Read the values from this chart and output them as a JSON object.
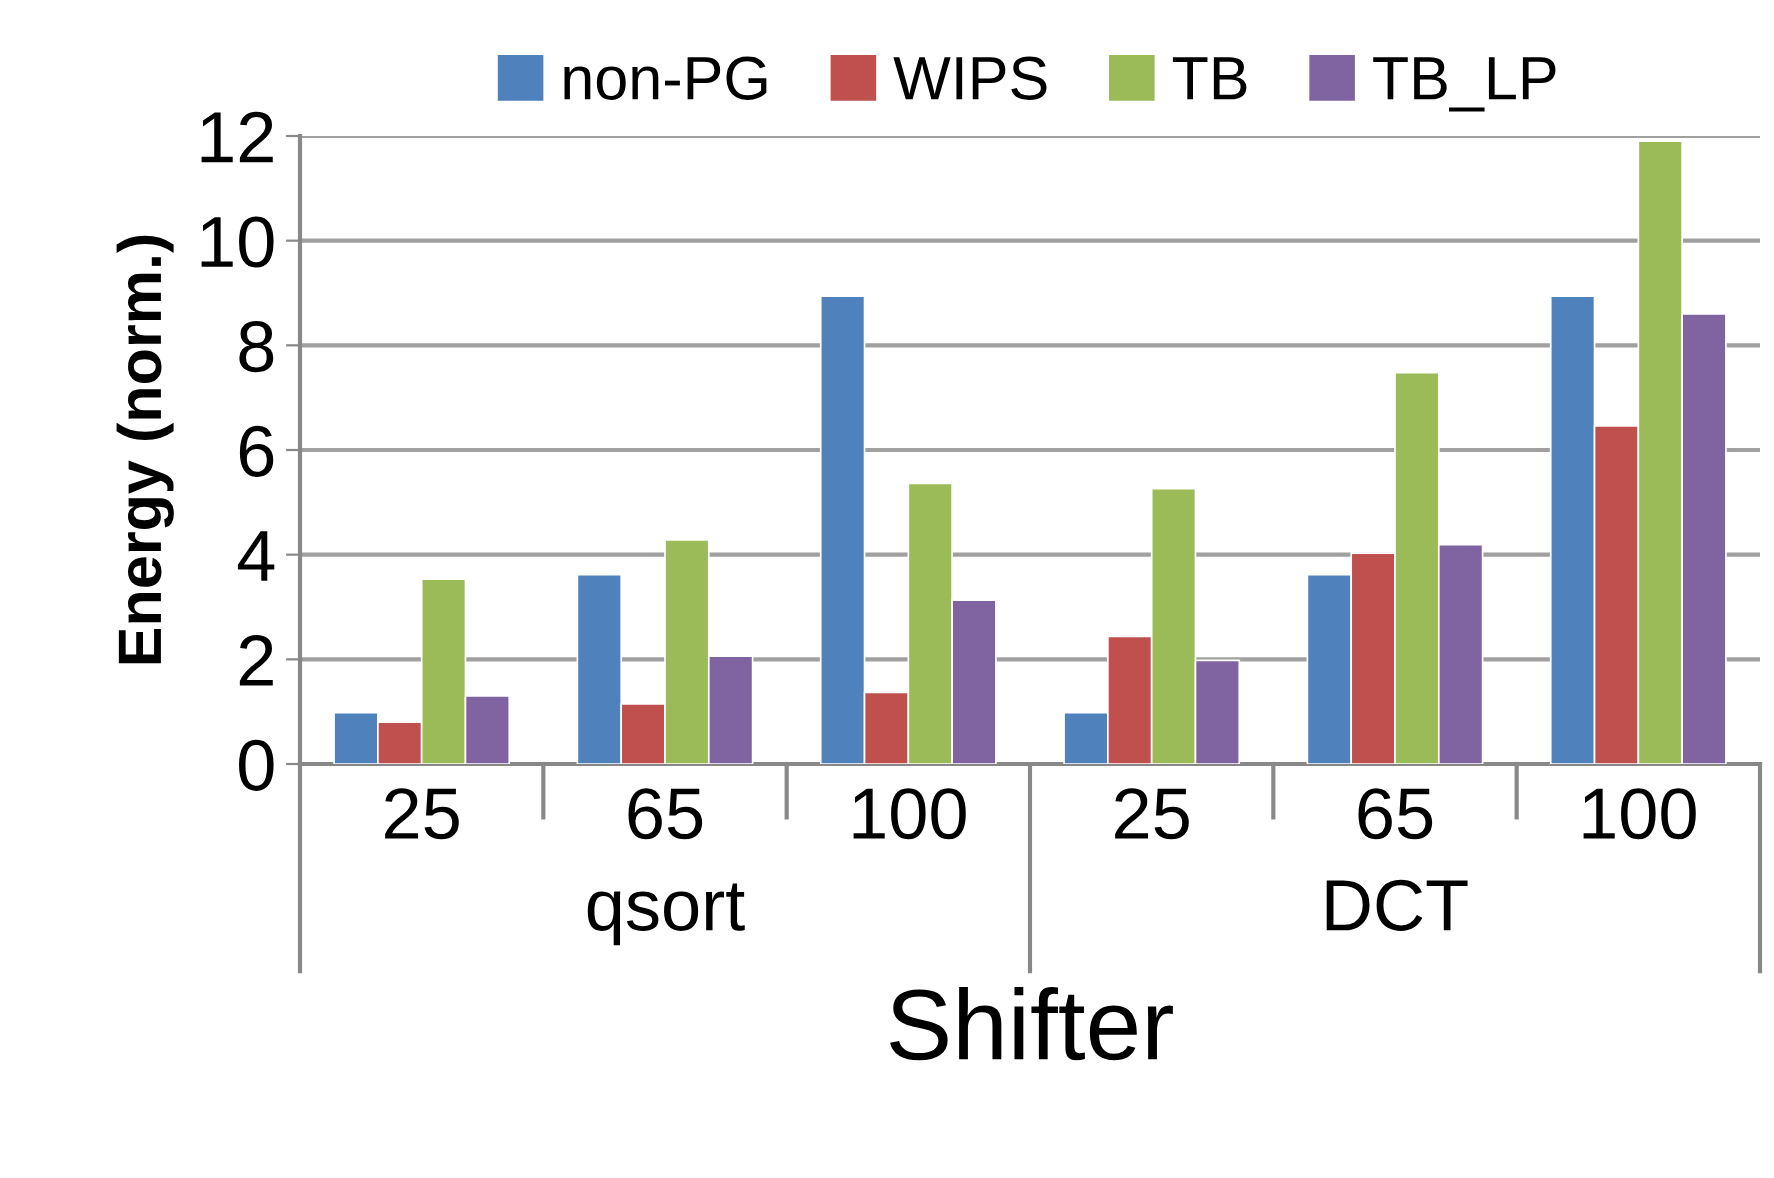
{
  "chart_data": {
    "type": "bar",
    "xlabel": "Shifter",
    "ylabel": "Energy (norm.)",
    "categories": [
      "25",
      "65",
      "100",
      "25",
      "65",
      "100"
    ],
    "annotations": [
      "qsort",
      "DCT"
    ],
    "series": [
      {
        "name": "non-PG",
        "color": "#4f81bd",
        "values": [
          0.98,
          3.62,
          8.94,
          0.98,
          3.62,
          8.94
        ]
      },
      {
        "name": "WIPS",
        "color": "#c0504d",
        "values": [
          0.8,
          1.15,
          1.37,
          2.44,
          4.03,
          6.46
        ]
      },
      {
        "name": "TB",
        "color": "#9bbb59",
        "values": [
          3.53,
          4.28,
          5.36,
          5.26,
          7.48,
          11.9
        ]
      },
      {
        "name": "TB_LP",
        "color": "#8064a2",
        "values": [
          1.3,
          2.06,
          3.13,
          1.98,
          4.19,
          8.6
        ]
      }
    ],
    "ylim": [
      0,
      12
    ],
    "yticks": [
      0,
      2,
      4,
      6,
      8,
      10,
      12
    ],
    "grid": "y",
    "legend": "top"
  }
}
